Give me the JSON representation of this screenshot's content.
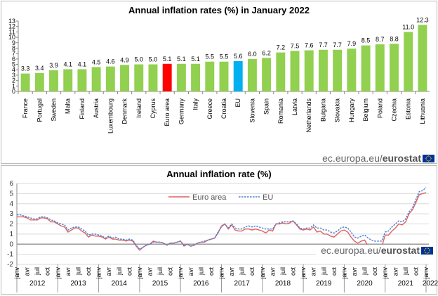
{
  "watermark": {
    "prefix": "ec.europa.eu/",
    "brand": "eurostat"
  },
  "colors": {
    "bar": "#92d050",
    "euro_area_bar": "#ff0000",
    "eu_bar": "#00b0f0",
    "euro_area_line": "#e06060",
    "eu_line": "#4a7fd0",
    "flag": "#003399"
  },
  "chart_data": [
    {
      "type": "bar",
      "title": "Annual inflation rates (%) in January 2022",
      "ylim": [
        0,
        13
      ],
      "yticks": [
        0,
        1,
        2,
        3,
        4,
        5,
        6,
        7,
        8,
        9,
        10,
        11,
        12,
        13
      ],
      "categories": [
        "France",
        "Portugal",
        "Sweden",
        "Malta",
        "Finland",
        "Austria",
        "Luxembourg",
        "Denmark",
        "Ireland",
        "Cyprus",
        "Euro area",
        "Germany",
        "Italy",
        "Greece",
        "Croatia",
        "EU",
        "Slovenia",
        "Spain",
        "Romania",
        "Latvia",
        "Netherlands",
        "Bulgaria",
        "Slovakia",
        "Hungary",
        "Belgium",
        "Poland",
        "Czechia",
        "Estonia",
        "Lithuania"
      ],
      "values": [
        3.3,
        3.4,
        3.9,
        4.1,
        4.1,
        4.5,
        4.6,
        4.9,
        5.0,
        5.0,
        5.1,
        5.1,
        5.1,
        5.5,
        5.5,
        5.6,
        6.0,
        6.2,
        7.2,
        7.5,
        7.6,
        7.7,
        7.7,
        7.9,
        8.5,
        8.7,
        8.8,
        11.0,
        12.3
      ],
      "labels": [
        "3.3",
        "3.4",
        "3.9",
        "4.1",
        "4.1",
        "4.5",
        "4.6",
        "4.9",
        "5.0",
        "5.0",
        "5.1",
        "5.1",
        "5.1",
        "5.5",
        "5.5",
        "5.6",
        "6.0",
        "6.2",
        "7.2",
        "7.5",
        "7.6",
        "7.7",
        "7.7",
        "7.9",
        "8.5",
        "8.7",
        "8.8",
        "11.0",
        "12.3"
      ],
      "highlight": {
        "Euro area": "euro_area_bar",
        "EU": "eu_bar"
      },
      "grid": false
    },
    {
      "type": "line",
      "title": "Annual inflation rate (%)",
      "ylim": [
        -2,
        6
      ],
      "yticks": [
        -2,
        -1,
        0,
        1,
        2,
        3,
        4,
        5,
        6
      ],
      "grid": true,
      "legend": "top-center",
      "month_labels": [
        "janv",
        "avr",
        "juil",
        "oct"
      ],
      "years": [
        "2012",
        "2013",
        "2014",
        "2015",
        "2016",
        "2017",
        "2018",
        "2019",
        "2020",
        "2021",
        "2022"
      ],
      "x_start": "2012-01",
      "x_end": "2022-01",
      "series": [
        {
          "name": "Euro area",
          "style": "solid",
          "color": "euro_area_line",
          "values": [
            2.7,
            2.7,
            2.7,
            2.6,
            2.4,
            2.4,
            2.4,
            2.6,
            2.6,
            2.5,
            2.2,
            2.2,
            2.0,
            1.8,
            1.7,
            1.2,
            1.4,
            1.6,
            1.6,
            1.3,
            1.1,
            0.7,
            0.9,
            0.8,
            0.8,
            0.7,
            0.5,
            0.7,
            0.5,
            0.5,
            0.4,
            0.4,
            0.3,
            0.4,
            0.3,
            -0.2,
            -0.6,
            -0.3,
            -0.1,
            0.0,
            0.3,
            0.2,
            0.2,
            0.1,
            -0.1,
            0.1,
            0.1,
            0.2,
            0.3,
            -0.2,
            0.0,
            -0.2,
            -0.1,
            0.1,
            0.2,
            0.2,
            0.4,
            0.5,
            0.6,
            1.1,
            1.8,
            2.0,
            1.5,
            1.9,
            1.4,
            1.3,
            1.3,
            1.5,
            1.5,
            1.4,
            1.5,
            1.4,
            1.3,
            1.1,
            1.4,
            1.3,
            2.0,
            2.0,
            2.1,
            2.0,
            2.1,
            2.3,
            1.9,
            1.5,
            1.4,
            1.5,
            1.4,
            1.7,
            1.2,
            1.3,
            1.0,
            1.0,
            0.8,
            0.7,
            1.0,
            1.3,
            1.4,
            1.2,
            0.7,
            0.3,
            0.1,
            0.3,
            0.4,
            -0.2,
            -0.3,
            -0.3,
            -0.3,
            -0.3,
            0.9,
            0.9,
            1.3,
            1.6,
            2.0,
            1.9,
            2.2,
            3.0,
            3.4,
            4.1,
            4.9,
            5.0,
            5.1
          ]
        },
        {
          "name": "EU",
          "style": "dashed",
          "color": "eu_line",
          "values": [
            2.9,
            2.9,
            2.8,
            2.7,
            2.6,
            2.5,
            2.5,
            2.7,
            2.7,
            2.6,
            2.4,
            2.3,
            2.1,
            2.0,
            1.9,
            1.4,
            1.6,
            1.7,
            1.7,
            1.5,
            1.3,
            0.9,
            1.0,
            1.0,
            0.9,
            0.8,
            0.6,
            0.8,
            0.6,
            0.7,
            0.5,
            0.5,
            0.4,
            0.5,
            0.4,
            -0.1,
            -0.5,
            -0.3,
            -0.1,
            0.0,
            0.2,
            0.2,
            0.2,
            0.1,
            -0.1,
            0.1,
            0.1,
            0.2,
            0.3,
            -0.1,
            0.0,
            -0.2,
            -0.1,
            0.1,
            0.2,
            0.3,
            0.4,
            0.5,
            0.6,
            1.2,
            1.7,
            2.0,
            1.6,
            2.0,
            1.6,
            1.5,
            1.5,
            1.7,
            1.8,
            1.7,
            1.8,
            1.7,
            1.6,
            1.5,
            1.5,
            1.5,
            2.0,
            2.1,
            2.2,
            2.2,
            2.2,
            2.3,
            2.0,
            1.6,
            1.5,
            1.6,
            1.6,
            1.9,
            1.6,
            1.6,
            1.4,
            1.4,
            1.2,
            1.1,
            1.3,
            1.6,
            1.7,
            1.6,
            1.2,
            0.7,
            0.6,
            0.8,
            0.9,
            0.6,
            0.4,
            0.3,
            0.3,
            0.3,
            1.2,
            1.3,
            1.7,
            2.0,
            2.3,
            2.2,
            2.5,
            3.2,
            3.6,
            4.4,
            5.2,
            5.3,
            5.6
          ]
        }
      ]
    }
  ]
}
